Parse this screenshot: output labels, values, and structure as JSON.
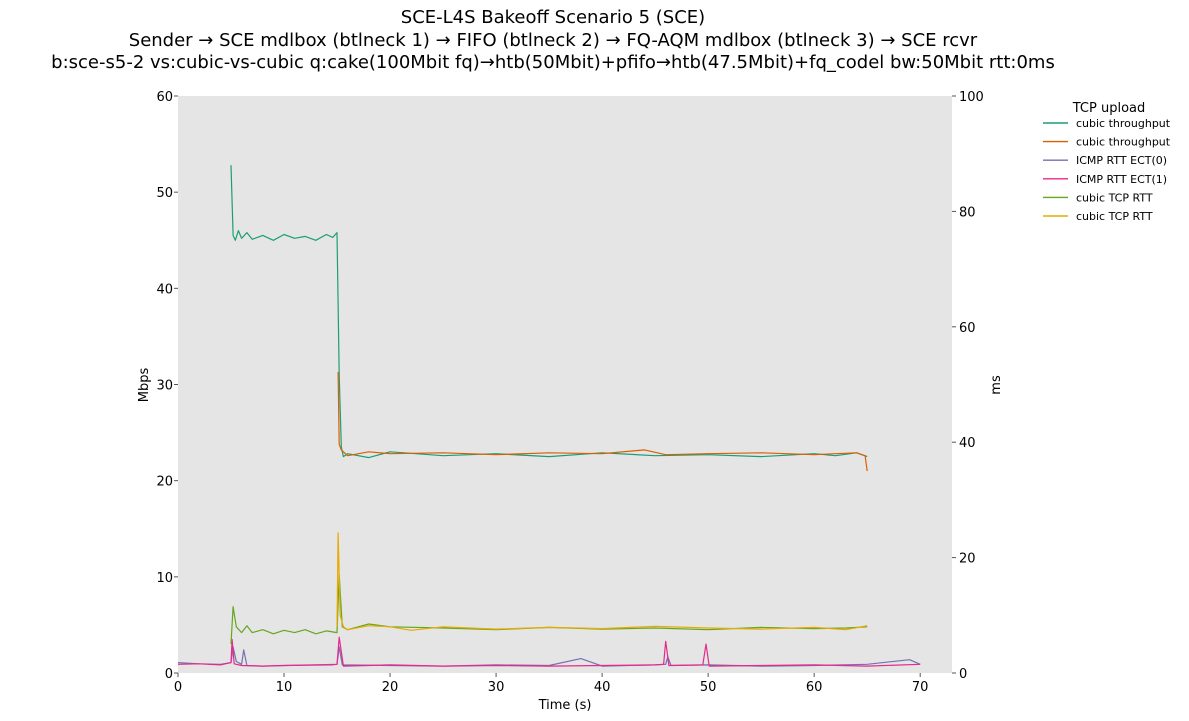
{
  "chart_data": {
    "type": "line",
    "title_lines": [
      "SCE-L4S Bakeoff Scenario 5 (SCE)",
      "Sender → SCE mdlbox (btlneck 1) → FIFO (btlneck 2) → FQ-AQM mdlbox (btlneck 3) → SCE rcvr",
      "b:sce-s5-2 vs:cubic-vs-cubic q:cake(100Mbit fq)→htb(50Mbit)+pfifo→htb(47.5Mbit)+fq_codel bw:50Mbit rtt:0ms"
    ],
    "xlabel": "Time (s)",
    "ylabel": "Mbps",
    "y2label": "ms",
    "xlim": [
      0,
      73
    ],
    "ylim": [
      0,
      60
    ],
    "y2lim": [
      0,
      100
    ],
    "xticks": [
      0,
      10,
      20,
      30,
      40,
      50,
      60,
      70
    ],
    "yticks": [
      0,
      10,
      20,
      30,
      40,
      50,
      60
    ],
    "y2ticks": [
      0,
      20,
      40,
      60,
      80,
      100
    ],
    "grid": false,
    "legend": {
      "title": "TCP upload",
      "placement": "outside-top-right"
    },
    "series": [
      {
        "name": "cubic throughput",
        "axis": "left",
        "color": "#1b9e77",
        "x": [
          5.0,
          5.2,
          5.4,
          5.7,
          6.0,
          6.5,
          7.0,
          8.0,
          9.0,
          10.0,
          11.0,
          12.0,
          13.0,
          14.0,
          14.6,
          15.0,
          15.2,
          15.4,
          15.6,
          16.0,
          18.0,
          20.0,
          25.0,
          30.0,
          35.0,
          40.0,
          45.0,
          50.0,
          55.0,
          60.0,
          62.0,
          64.0,
          65.0
        ],
        "values": [
          52.8,
          45.5,
          45.0,
          46.0,
          45.2,
          45.8,
          45.1,
          45.5,
          45.0,
          45.6,
          45.2,
          45.4,
          45.0,
          45.6,
          45.3,
          45.8,
          31.0,
          23.5,
          22.5,
          22.8,
          22.4,
          23.0,
          22.6,
          22.8,
          22.5,
          22.9,
          22.6,
          22.7,
          22.5,
          22.8,
          22.6,
          22.9,
          22.5
        ]
      },
      {
        "name": "cubic throughput",
        "axis": "left",
        "color": "#d95f02",
        "x": [
          15.1,
          15.2,
          15.4,
          15.7,
          16.0,
          18.0,
          20.0,
          25.0,
          30.0,
          35.0,
          40.0,
          44.0,
          46.0,
          50.0,
          55.0,
          60.0,
          62.0,
          64.0,
          64.8,
          65.0
        ],
        "values": [
          31.3,
          23.8,
          23.2,
          22.9,
          22.6,
          23.0,
          22.8,
          22.9,
          22.7,
          22.9,
          22.8,
          23.2,
          22.7,
          22.8,
          22.9,
          22.7,
          22.8,
          22.9,
          22.6,
          21.0
        ]
      },
      {
        "name": "ICMP RTT ECT(0)",
        "axis": "right",
        "color": "#7570b3",
        "x": [
          0,
          2,
          4,
          5.0,
          5.2,
          5.5,
          6.0,
          6.2,
          6.5,
          8,
          10,
          15.0,
          15.2,
          15.5,
          20,
          25,
          30,
          35,
          38,
          40,
          45,
          46.0,
          46.2,
          46.5,
          50,
          55,
          60,
          65,
          69,
          70
        ],
        "values": [
          1.8,
          1.6,
          1.5,
          1.8,
          4.5,
          2.0,
          1.5,
          4.0,
          1.3,
          1.2,
          1.3,
          1.5,
          4.5,
          1.4,
          1.3,
          1.2,
          1.4,
          1.3,
          2.5,
          1.2,
          1.4,
          1.5,
          2.8,
          1.3,
          1.4,
          1.2,
          1.3,
          1.5,
          2.3,
          1.5
        ]
      },
      {
        "name": "ICMP RTT ECT(1)",
        "axis": "right",
        "color": "#e7298a",
        "x": [
          0,
          2,
          4,
          5.0,
          5.1,
          5.3,
          6.0,
          8,
          10,
          14.5,
          15.0,
          15.2,
          15.6,
          20,
          25,
          30,
          35,
          40,
          45,
          45.8,
          46.0,
          46.3,
          49.5,
          49.8,
          50.1,
          55,
          60,
          65,
          70
        ],
        "values": [
          1.5,
          1.6,
          1.4,
          1.8,
          5.8,
          1.6,
          1.3,
          1.2,
          1.3,
          1.4,
          1.5,
          6.2,
          1.2,
          1.4,
          1.2,
          1.3,
          1.2,
          1.3,
          1.4,
          1.5,
          5.5,
          1.3,
          1.4,
          5.0,
          1.2,
          1.3,
          1.4,
          1.2,
          1.5
        ]
      },
      {
        "name": "cubic TCP RTT",
        "axis": "right",
        "color": "#66a61e",
        "x": [
          5.0,
          5.2,
          5.5,
          6.0,
          6.5,
          7,
          8,
          9,
          10,
          11,
          12,
          13,
          14,
          15.0,
          15.2,
          15.5,
          16,
          18,
          20,
          25,
          30,
          35,
          40,
          45,
          50,
          55,
          60,
          63,
          65
        ],
        "values": [
          5.0,
          11.5,
          8.0,
          7.0,
          8.2,
          7.0,
          7.5,
          6.8,
          7.4,
          7.0,
          7.5,
          6.8,
          7.3,
          7.0,
          17.0,
          8.0,
          7.5,
          8.5,
          8.0,
          7.8,
          7.5,
          7.9,
          7.6,
          7.8,
          7.5,
          7.9,
          7.7,
          7.8,
          8.0
        ]
      },
      {
        "name": "cubic TCP RTT",
        "axis": "right",
        "color": "#e6ab02",
        "x": [
          15.0,
          15.1,
          15.3,
          15.6,
          16.0,
          18,
          20,
          22,
          25,
          30,
          35,
          40,
          45,
          50,
          55,
          60,
          63,
          65
        ],
        "values": [
          8.0,
          24.3,
          10.0,
          8.0,
          7.5,
          8.2,
          8.0,
          7.4,
          8.0,
          7.6,
          7.9,
          7.7,
          8.1,
          7.8,
          7.6,
          7.9,
          7.5,
          8.2
        ]
      }
    ]
  }
}
